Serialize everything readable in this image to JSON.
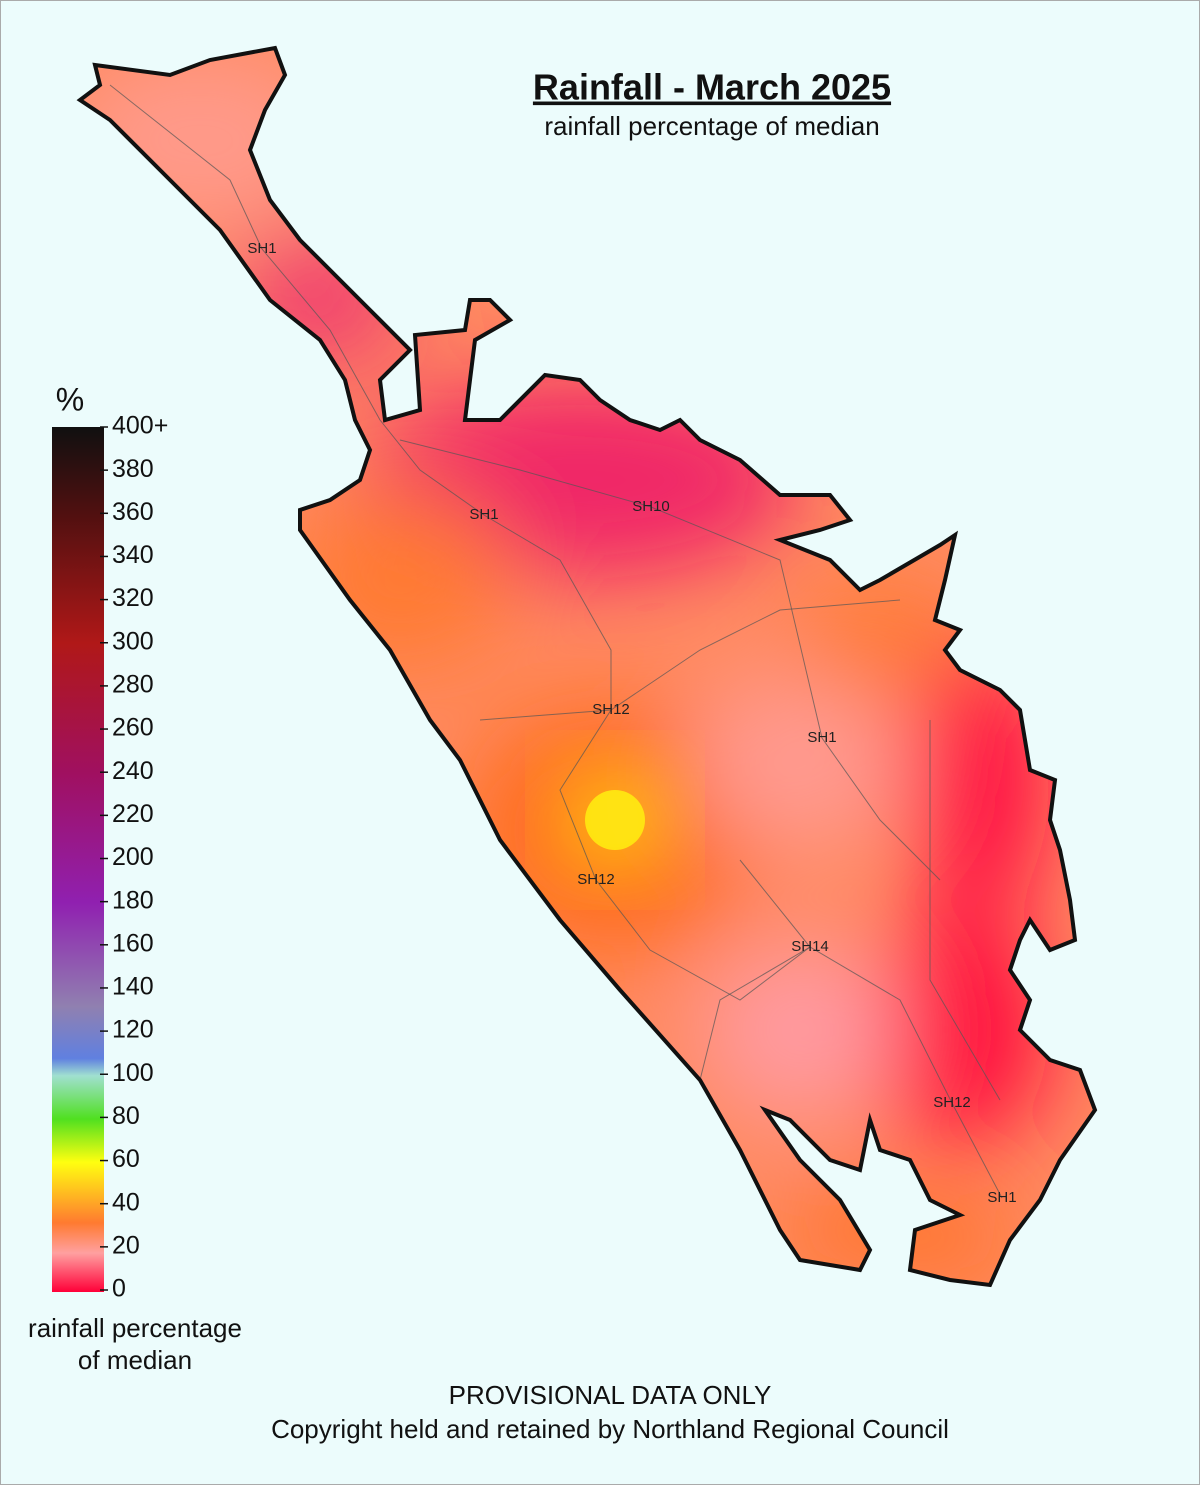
{
  "title": "Rainfall - March 2025",
  "subtitle": "rainfall percentage of median",
  "legend": {
    "unit": "%",
    "lim": [
      0,
      400
    ],
    "ticks": [
      0,
      20,
      40,
      60,
      80,
      100,
      120,
      140,
      160,
      180,
      200,
      220,
      240,
      260,
      280,
      300,
      320,
      340,
      360,
      380,
      {
        "value": 400,
        "label": "400+"
      }
    ],
    "caption": [
      "rainfall percentage",
      "of median"
    ]
  },
  "road_labels": [
    "SH1",
    "SH1",
    "SH10",
    "SH12",
    "SH1",
    "SH12",
    "SH14",
    "SH12",
    "SH1"
  ],
  "footer": [
    "PROVISIONAL DATA ONLY",
    "Copyright held and retained by Northland Regional Council"
  ]
}
